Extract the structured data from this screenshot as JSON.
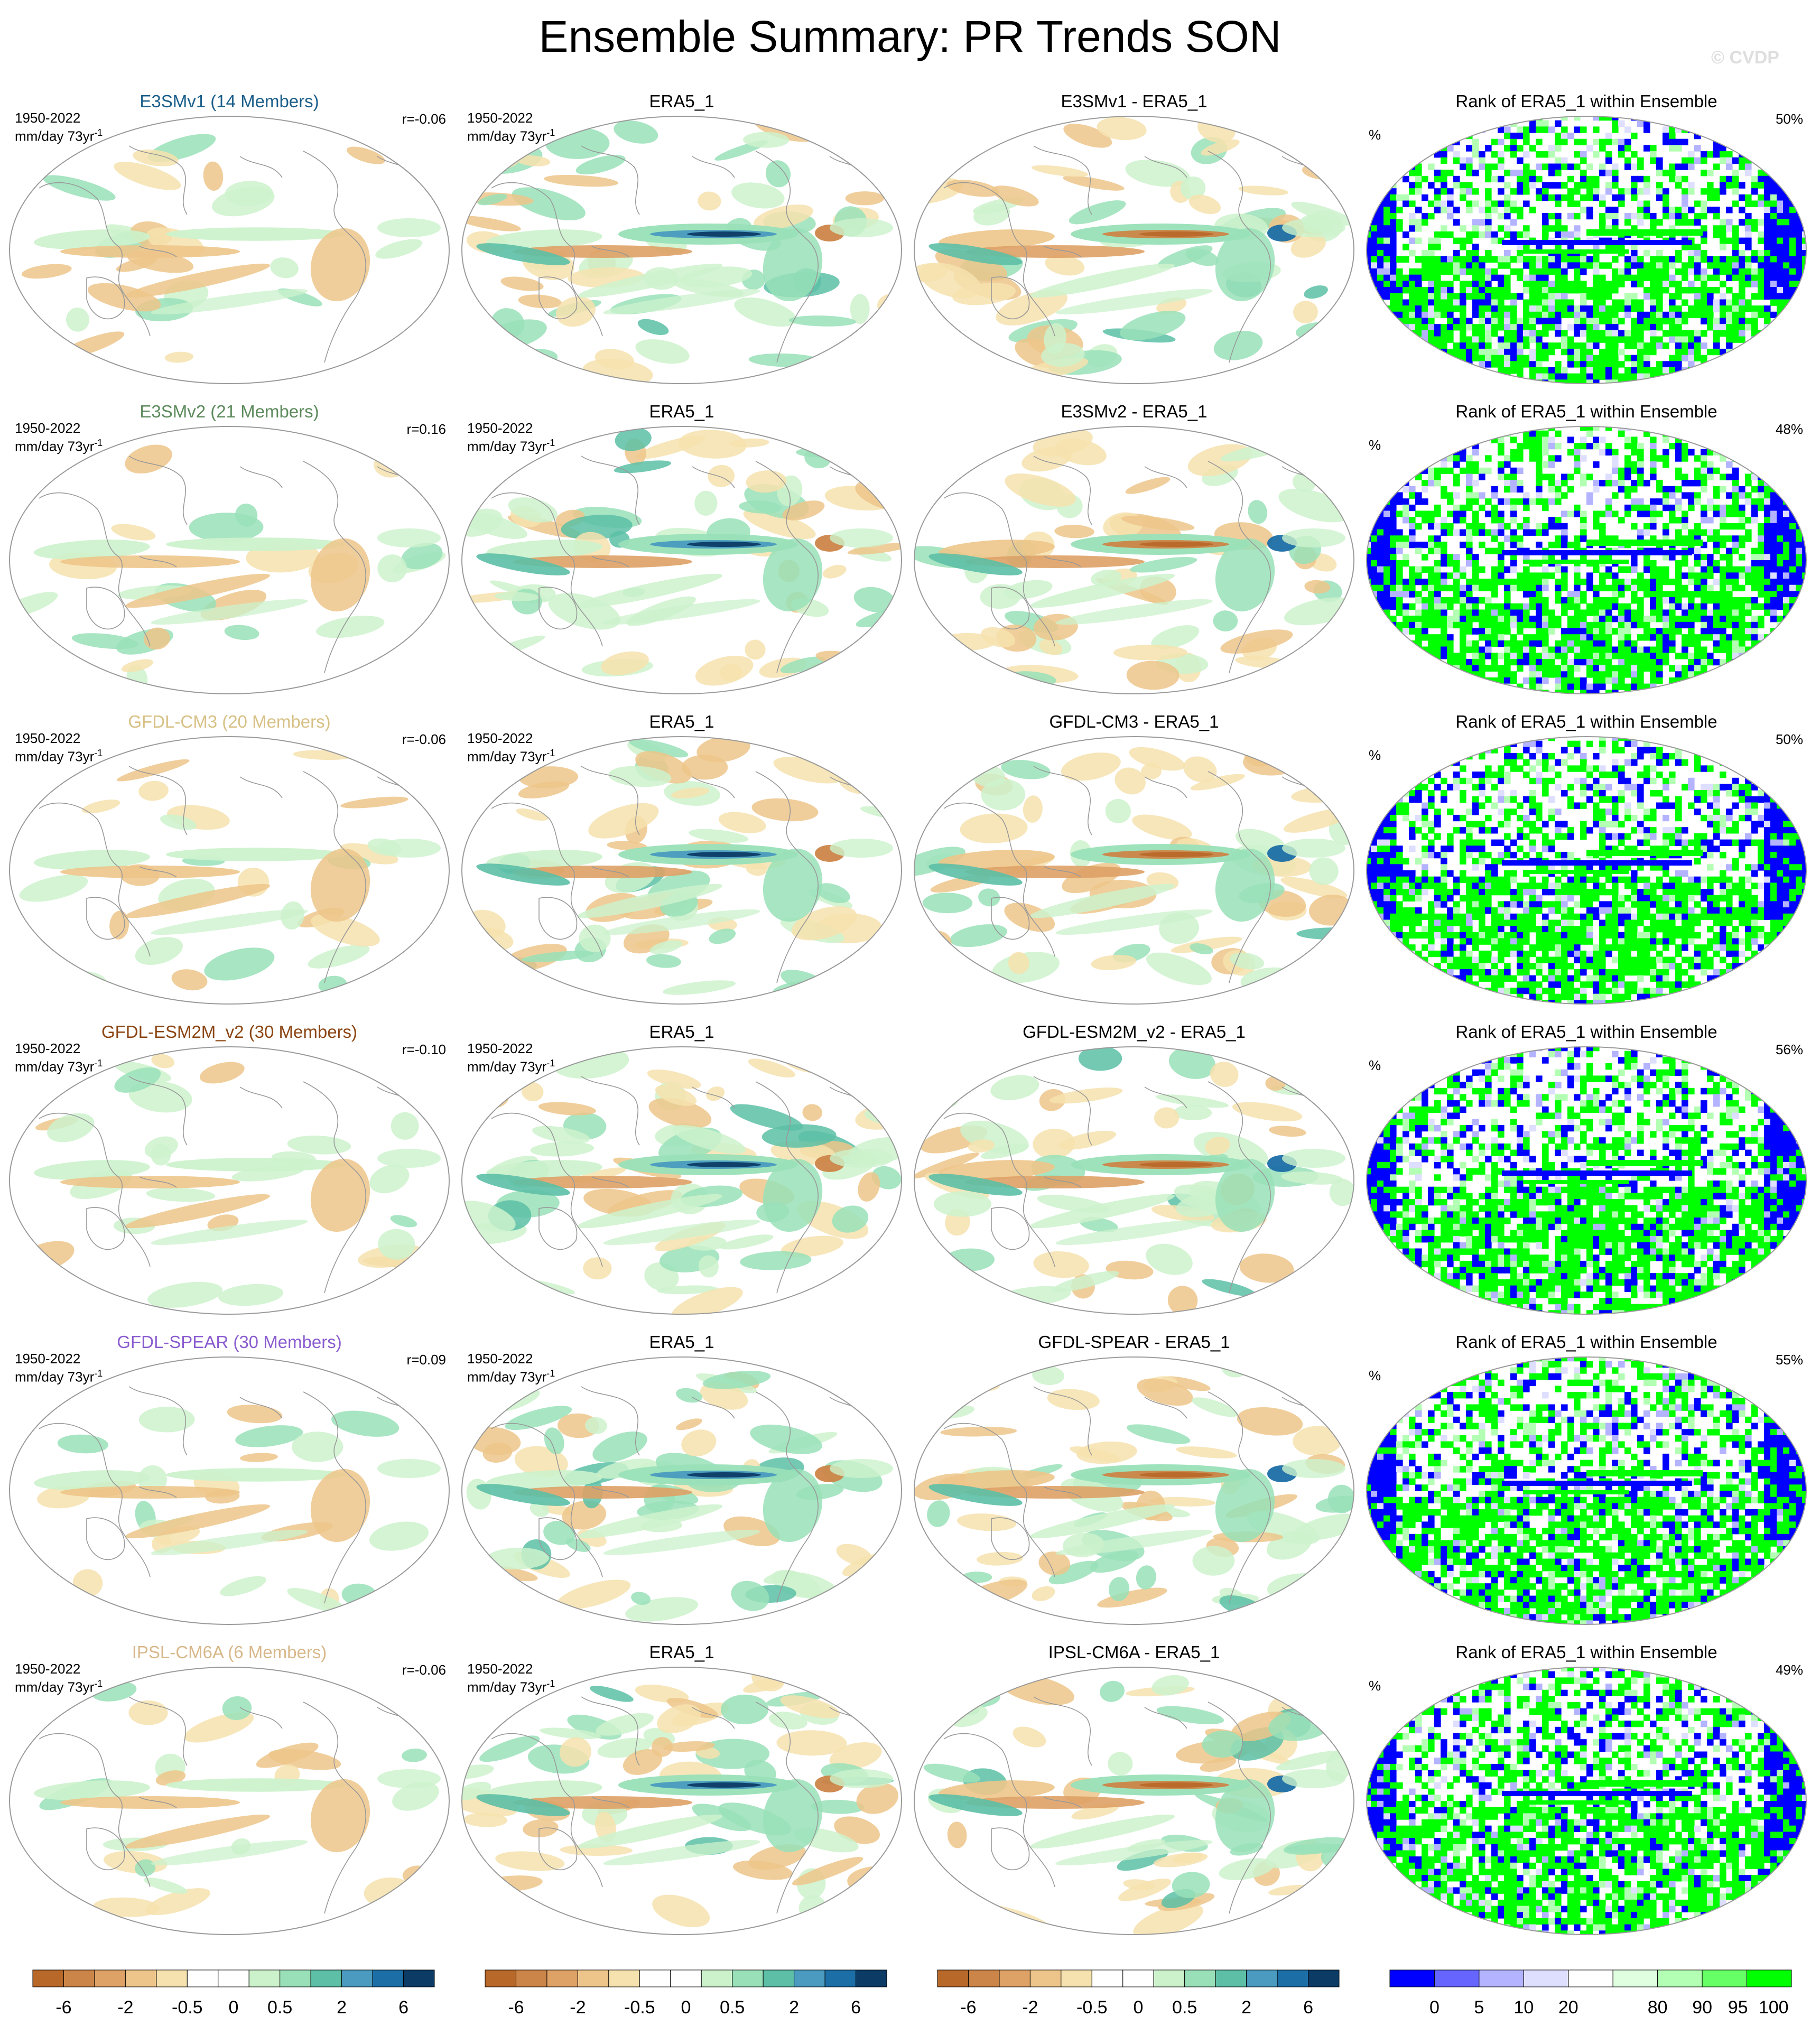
{
  "title": "Ensemble Summary: PR Trends SON",
  "watermark": "© CVDP",
  "period": "1950-2022",
  "units": "mm/day 73yr",
  "units_superscript": "-1",
  "percent_symbol": "%",
  "colors": {
    "trend_scale": [
      "#b8692a",
      "#cc8548",
      "#dea166",
      "#edc58a",
      "#f6e2ae",
      "#ffffff",
      "#ffffff",
      "#ccf2cc",
      "#99e0b8",
      "#5cbfa6",
      "#4a9bbf",
      "#1b6ea6",
      "#0c3c66"
    ],
    "rank_scale": [
      "#0000ff",
      "#6666ff",
      "#b3b3ff",
      "#dedeff",
      "#ffffff",
      "#e0ffe0",
      "#b3ffb3",
      "#66ff66",
      "#00ff00"
    ],
    "coast": "#999999",
    "watermark": "#dedede"
  },
  "rows": [
    {
      "model": "E3SMv1",
      "members_label": "E3SMv1 (14 Members)",
      "name_color": "#1a5e8a",
      "r": "r=-0.06",
      "obs": "ERA5_1",
      "diff": "E3SMv1 - ERA5_1",
      "rank_title": "Rank of ERA5_1 within Ensemble",
      "rank_pct": "50%"
    },
    {
      "model": "E3SMv2",
      "members_label": "E3SMv2 (21 Members)",
      "name_color": "#5c8a5c",
      "r": "r=0.16",
      "obs": "ERA5_1",
      "diff": "E3SMv2 - ERA5_1",
      "rank_title": "Rank of ERA5_1 within Ensemble",
      "rank_pct": "48%"
    },
    {
      "model": "GFDL-CM3",
      "members_label": "GFDL-CM3 (20 Members)",
      "name_color": "#d7c084",
      "r": "r=-0.06",
      "obs": "ERA5_1",
      "diff": "GFDL-CM3 - ERA5_1",
      "rank_title": "Rank of ERA5_1 within Ensemble",
      "rank_pct": "50%"
    },
    {
      "model": "GFDL-ESM2M_v2",
      "members_label": "GFDL-ESM2M_v2 (30 Members)",
      "name_color": "#8b4513",
      "r": "r=-0.10",
      "obs": "ERA5_1",
      "diff": "GFDL-ESM2M_v2 - ERA5_1",
      "rank_title": "Rank of ERA5_1 within Ensemble",
      "rank_pct": "56%"
    },
    {
      "model": "GFDL-SPEAR",
      "members_label": "GFDL-SPEAR (30 Members)",
      "name_color": "#8a5ccf",
      "r": "r=0.09",
      "obs": "ERA5_1",
      "diff": "GFDL-SPEAR - ERA5_1",
      "rank_title": "Rank of ERA5_1 within Ensemble",
      "rank_pct": "55%"
    },
    {
      "model": "IPSL-CM6A",
      "members_label": "IPSL-CM6A (6 Members)",
      "name_color": "#d8b88a",
      "r": "r=-0.06",
      "obs": "ERA5_1",
      "diff": "IPSL-CM6A - ERA5_1",
      "rank_title": "Rank of ERA5_1 within Ensemble",
      "rank_pct": "49%"
    }
  ],
  "colorbars": {
    "trend_labels": [
      "-6",
      "-2",
      "-0.5",
      "0",
      "0.5",
      "2",
      "6"
    ],
    "rank_labels": [
      "0",
      "5",
      "10",
      "20",
      "80",
      "90",
      "95",
      "100"
    ]
  }
}
